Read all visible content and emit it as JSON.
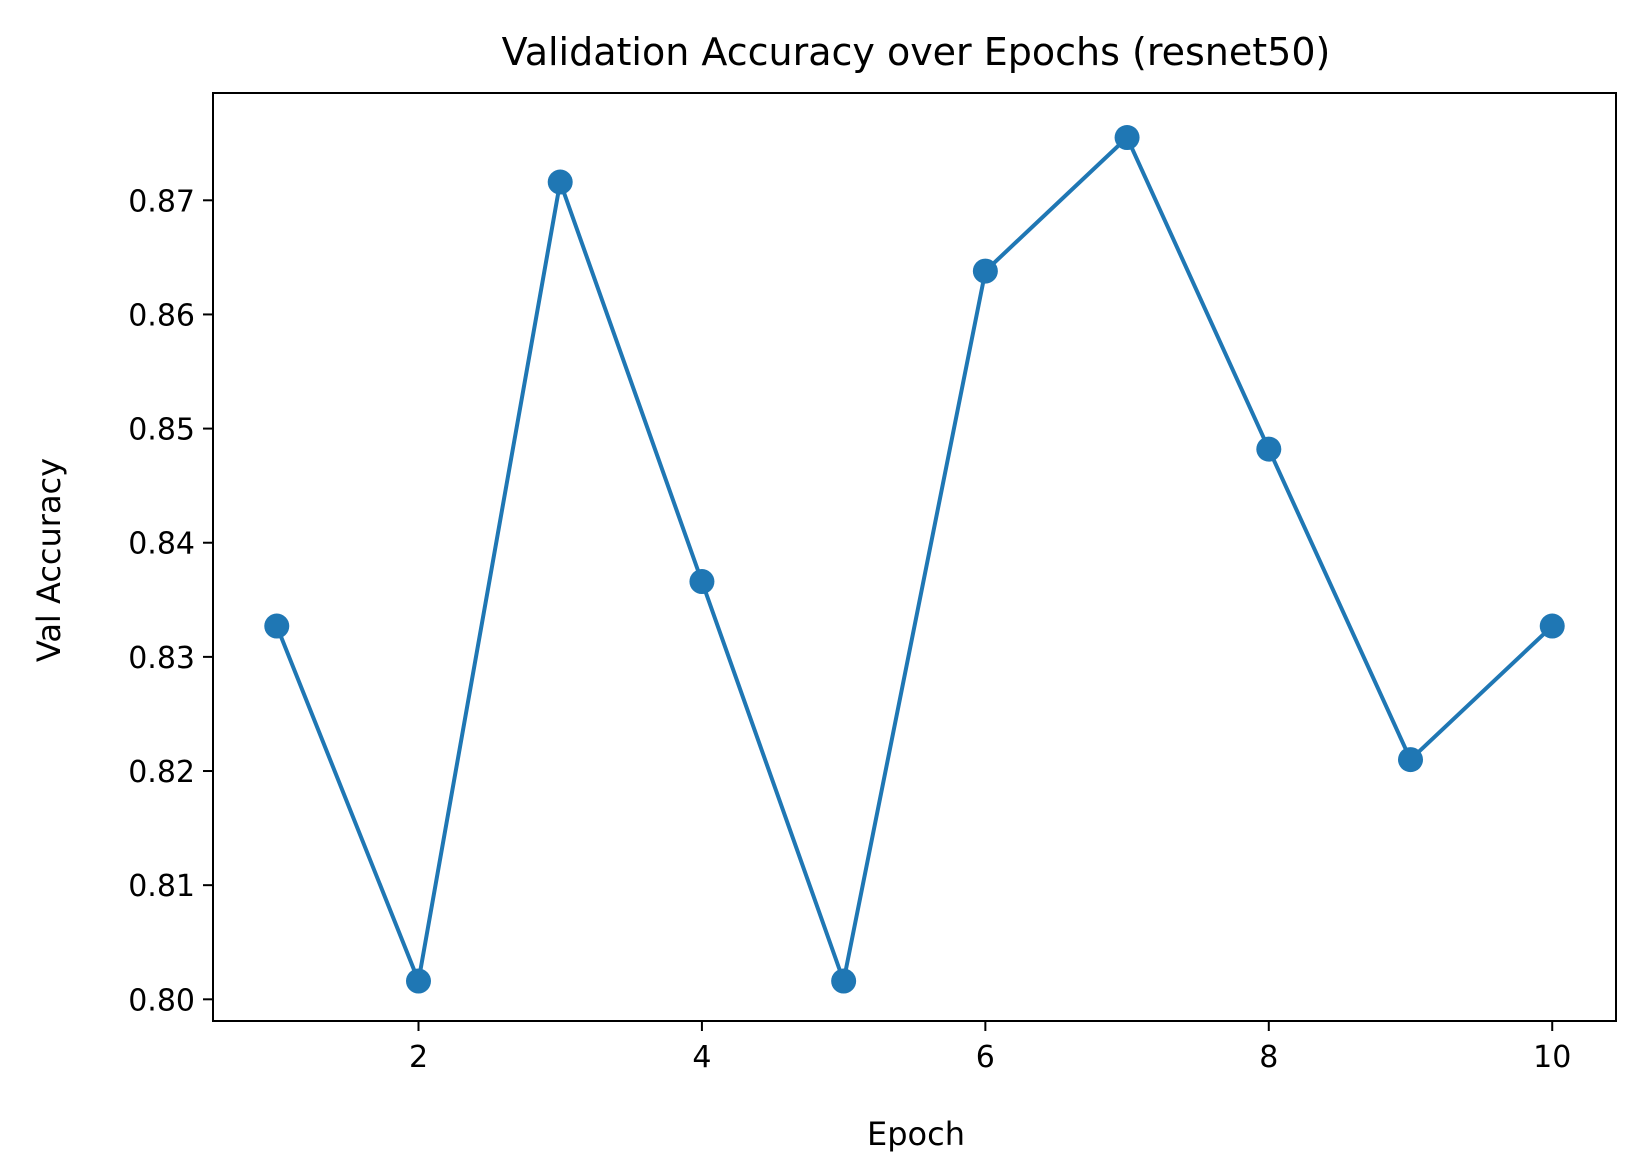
{
  "chart_data": {
    "type": "line",
    "title": "Validation Accuracy over Epochs (resnet50)",
    "xlabel": "Epoch",
    "ylabel": "Val Accuracy",
    "xlim": [
      0.55,
      10.45
    ],
    "ylim": [
      0.7981,
      0.8794
    ],
    "xticks": [
      2,
      4,
      6,
      8,
      10
    ],
    "xtick_labels": [
      "2",
      "4",
      "6",
      "8",
      "10"
    ],
    "yticks": [
      0.8,
      0.81,
      0.82,
      0.83,
      0.84,
      0.85,
      0.86,
      0.87
    ],
    "ytick_labels": [
      "0.80",
      "0.81",
      "0.82",
      "0.83",
      "0.84",
      "0.85",
      "0.86",
      "0.87"
    ],
    "grid": false,
    "series": [
      {
        "color": "#1f77b4",
        "marker": "circle",
        "x": [
          1,
          2,
          3,
          4,
          5,
          6,
          7,
          8,
          9,
          10
        ],
        "y": [
          0.8327,
          0.8016,
          0.8716,
          0.8366,
          0.8016,
          0.8638,
          0.8755,
          0.8482,
          0.821,
          0.8327
        ]
      }
    ]
  }
}
